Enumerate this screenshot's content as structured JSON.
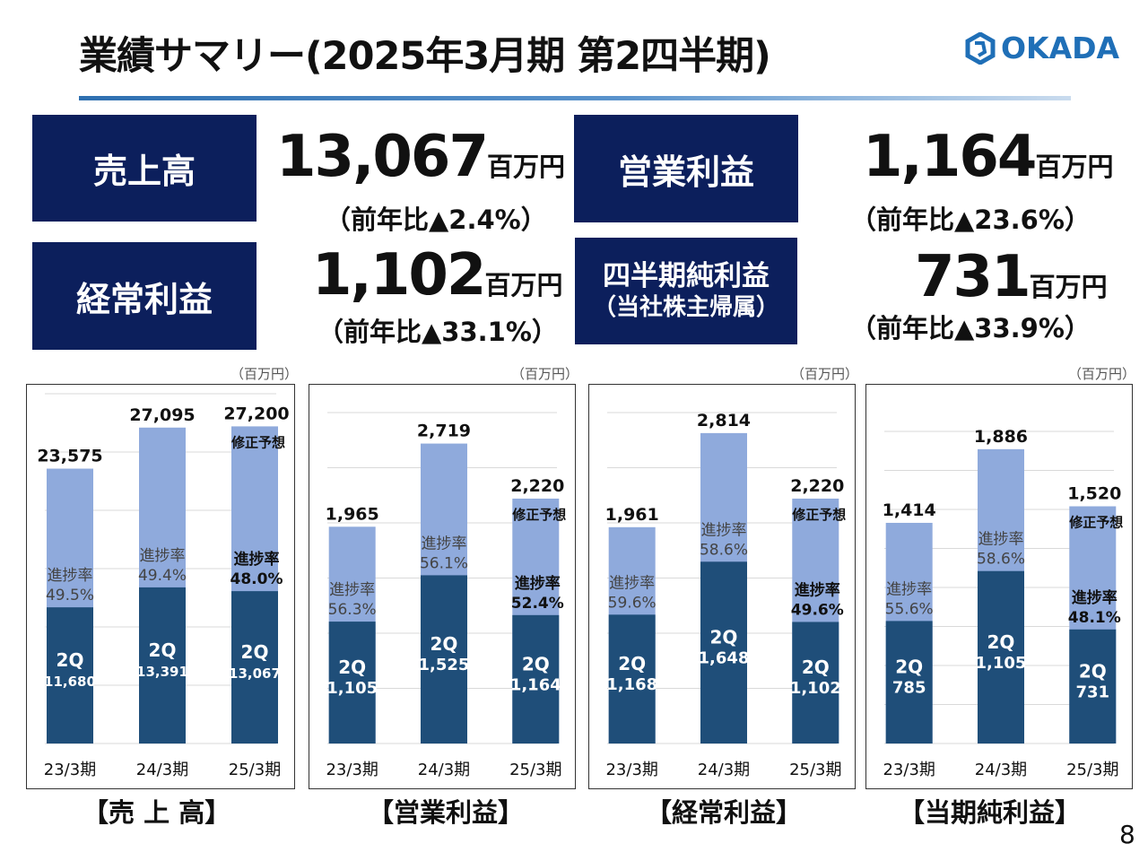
{
  "title": "業績サマリー(2025年3月期 第2四半期)",
  "logo": {
    "text": "OKADA",
    "color": "#1f6fb7"
  },
  "colors": {
    "navy": "#0c1f5c",
    "bar_dark": "#1f4e79",
    "bar_light": "#8faadc"
  },
  "kpis": [
    {
      "label": "売上高",
      "value": "13,067",
      "unit": "百万円",
      "yoy": "（前年比▲2.4%）"
    },
    {
      "label": "営業利益",
      "value": "1,164",
      "unit": "百万円",
      "yoy": "（前年比▲23.6%）"
    },
    {
      "label": "経常利益",
      "value": "1,102",
      "unit": "百万円",
      "yoy": "（前年比▲33.1%）"
    },
    {
      "label": "四半期純利益",
      "sublabel": "（当社株主帰属）",
      "value": "731",
      "unit": "百万円",
      "yoy": "（前年比▲33.9%）"
    }
  ],
  "page_number": "8",
  "chart_data": [
    {
      "type": "bar",
      "stacked": true,
      "title": "【売 上 高】",
      "unit": "（百万円）",
      "ylim": [
        0,
        30000
      ],
      "grid_step": 5000,
      "grid": true,
      "categories": [
        "23/3期",
        "24/3期",
        "25/3期"
      ],
      "annual": [
        23575,
        27095,
        27200
      ],
      "annual_labels": [
        "23,575",
        "27,095",
        "27,200"
      ],
      "q2": [
        11680,
        13391,
        13067
      ],
      "q2_labels": [
        "11,680",
        "13,391",
        "13,067"
      ],
      "progress": [
        "49.5%",
        "49.4%",
        "48.0%"
      ],
      "progress_label": "進捗率",
      "q2_prefix": "2Q",
      "forecast_note": "修正予想"
    },
    {
      "type": "bar",
      "stacked": true,
      "title": "【営業利益】",
      "unit": "（百万円）",
      "ylim": [
        0,
        3000
      ],
      "grid_step": 500,
      "grid": true,
      "categories": [
        "23/3期",
        "24/3期",
        "25/3期"
      ],
      "annual": [
        1965,
        2719,
        2220
      ],
      "annual_labels": [
        "1,965",
        "2,719",
        "2,220"
      ],
      "q2": [
        1105,
        1525,
        1164
      ],
      "q2_labels": [
        "1,105",
        "1,525",
        "1,164"
      ],
      "progress": [
        "56.3%",
        "56.1%",
        "52.4%"
      ],
      "progress_label": "進捗率",
      "q2_prefix": "2Q",
      "forecast_note": "修正予想"
    },
    {
      "type": "bar",
      "stacked": true,
      "title": "【経常利益】",
      "unit": "（百万円）",
      "ylim": [
        0,
        3000
      ],
      "grid_step": 500,
      "grid": true,
      "categories": [
        "23/3期",
        "24/3期",
        "25/3期"
      ],
      "annual": [
        1961,
        2814,
        2220
      ],
      "annual_labels": [
        "1,961",
        "2,814",
        "2,220"
      ],
      "q2": [
        1168,
        1648,
        1102
      ],
      "q2_labels": [
        "1,168",
        "1,648",
        "1,102"
      ],
      "progress": [
        "59.6%",
        "58.6%",
        "49.6%"
      ],
      "progress_label": "進捗率",
      "q2_prefix": "2Q",
      "forecast_note": "修正予想"
    },
    {
      "type": "bar",
      "stacked": true,
      "title": "【当期純利益】",
      "unit": "（百万円）",
      "ylim": [
        0,
        2000
      ],
      "grid_step": 250,
      "grid": true,
      "categories": [
        "23/3期",
        "24/3期",
        "25/3期"
      ],
      "annual": [
        1414,
        1886,
        1520
      ],
      "annual_labels": [
        "1,414",
        "1,886",
        "1,520"
      ],
      "q2": [
        785,
        1105,
        731
      ],
      "q2_labels": [
        "785",
        "1,105",
        "731"
      ],
      "progress": [
        "55.6%",
        "58.6%",
        "48.1%"
      ],
      "progress_label": "進捗率",
      "q2_prefix": "2Q",
      "forecast_note": "修正予想"
    }
  ]
}
